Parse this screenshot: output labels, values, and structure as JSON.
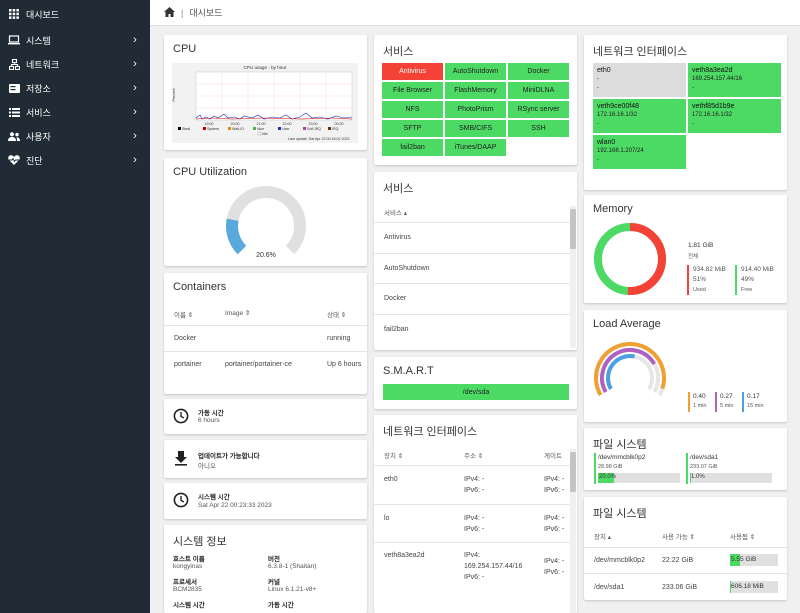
{
  "sidebar": {
    "items": [
      {
        "label": "대시보드",
        "icon": "dashboard-grid-icon"
      },
      {
        "label": "시스템",
        "icon": "laptop-icon"
      },
      {
        "label": "네트워크",
        "icon": "network-icon"
      },
      {
        "label": "저장소",
        "icon": "storage-icon"
      },
      {
        "label": "서비스",
        "icon": "list-icon"
      },
      {
        "label": "사용자",
        "icon": "users-icon"
      },
      {
        "label": "진단",
        "icon": "heart-pulse-icon"
      }
    ]
  },
  "breadcrumb": {
    "current": "대시보드"
  },
  "cpu": {
    "title": "CPU",
    "graph_title": "CPU usage - by hour",
    "y_label": "Percent",
    "x_ticks": [
      "19:00",
      "20:00",
      "21:00",
      "22:00",
      "23:00",
      "00:00"
    ],
    "legend": [
      "Steal",
      "System",
      "Wait-IO",
      "Nice",
      "User",
      "Soft-IRQ",
      "IRQ",
      "Idle"
    ],
    "updated": "Last update: Sat Apr 22 00:15:01 2023"
  },
  "cpu_util": {
    "title": "CPU Utilization",
    "value": "20.6%",
    "percent": 20.6
  },
  "containers": {
    "title": "Containers",
    "headers": [
      "이름",
      "Image",
      "상태"
    ],
    "rows": [
      [
        "Docker",
        "",
        "running"
      ],
      [
        "portainer",
        "portainer/portainer-ce",
        "Up 6 hours"
      ]
    ]
  },
  "uptime": {
    "label": "가동 시간",
    "value": "6 hours"
  },
  "updates": {
    "label": "업데이트가 가능합니다",
    "value": "아니오"
  },
  "systime": {
    "label": "시스템 시간",
    "value": "Sat Apr 22 00:23:33 2023"
  },
  "sysinfo": {
    "title": "시스템 정보",
    "fields": [
      {
        "k": "호스트 이름",
        "v": "kongyinas"
      },
      {
        "k": "버전",
        "v": "6.3.8-1 (Shaitan)"
      },
      {
        "k": "프로세서",
        "v": "BCM2835"
      },
      {
        "k": "커널",
        "v": "Linux 6.1.21-v8+"
      },
      {
        "k": "시스템 시간",
        "v": ""
      },
      {
        "k": "가동 시간",
        "v": ""
      }
    ]
  },
  "services_grid": {
    "title": "서비스",
    "tiles": [
      {
        "label": "Antivirus",
        "status": "red"
      },
      {
        "label": "AutoShutdown",
        "status": "green"
      },
      {
        "label": "Docker",
        "status": "green"
      },
      {
        "label": "File Browser",
        "status": "green"
      },
      {
        "label": "FlashMemory",
        "status": "green"
      },
      {
        "label": "MiniDLNA",
        "status": "green"
      },
      {
        "label": "NFS",
        "status": "green"
      },
      {
        "label": "PhotoPrism",
        "status": "green"
      },
      {
        "label": "RSync server",
        "status": "green"
      },
      {
        "label": "SFTP",
        "status": "green"
      },
      {
        "label": "SMB/CIFS",
        "status": "green"
      },
      {
        "label": "SSH",
        "status": "green"
      },
      {
        "label": "fail2ban",
        "status": "green"
      },
      {
        "label": "iTunes/DAAP",
        "status": "green"
      }
    ],
    "red": "#f44336",
    "green": "#4cd964"
  },
  "services_list": {
    "title": "서비스",
    "header": "서비스",
    "items": [
      "Antivirus",
      "AutoShutdown",
      "Docker",
      "fail2ban"
    ]
  },
  "smart": {
    "title": "S.M.A.R.T",
    "device": "/dev/sda"
  },
  "net_list": {
    "title": "네트워크 인터페이스",
    "headers": [
      "장치",
      "주소",
      "게이트"
    ],
    "rows": [
      {
        "dev": "eth0",
        "addr": [
          "IPv4: -",
          "IPv6: -"
        ],
        "gw": [
          "IPv4: -",
          "IPv6: -"
        ]
      },
      {
        "dev": "lo",
        "addr": [
          "IPv4: -",
          "IPv6: -"
        ],
        "gw": [
          "IPv4: -",
          "IPv6: -"
        ]
      },
      {
        "dev": "veth8a3ea2d",
        "addr": [
          "IPv4:",
          "169.254.157.44/16",
          "IPv6: -"
        ],
        "gw": [
          "IPv4: -",
          "IPv6: -"
        ]
      }
    ]
  },
  "net_grid": {
    "title": "네트워크 인터페이스",
    "tiles": [
      {
        "name": "eth0",
        "ip": "-",
        "sub": "-",
        "up": false
      },
      {
        "name": "veth8a3ea2d",
        "ip": "169.254.157.44/16",
        "sub": "-",
        "up": true
      },
      {
        "name": "veth9ce00f48",
        "ip": "172.16.16.1/32",
        "sub": "-",
        "up": true
      },
      {
        "name": "vethf85d1b9e",
        "ip": "172.16.16.1/32",
        "sub": "-",
        "up": true
      },
      {
        "name": "wlan0",
        "ip": "192.168.1.207/24",
        "sub": "-",
        "up": true
      }
    ]
  },
  "memory": {
    "title": "Memory",
    "total": "1.81 GiB",
    "total_label": "전체",
    "used": "934.82 MiB",
    "used_pct": "51%",
    "used_label": "Used",
    "free": "914.40 MiB",
    "free_pct": "49%",
    "free_label": "Free",
    "used_frac": 0.51
  },
  "load": {
    "title": "Load Average",
    "items": [
      {
        "v": "0.40",
        "l": "1 min",
        "color": "#f0a030"
      },
      {
        "v": "0.27",
        "l": "5 min",
        "color": "#b060c0"
      },
      {
        "v": "0.17",
        "l": "15 min",
        "color": "#4aa0e0"
      }
    ],
    "values": [
      0.4,
      0.27,
      0.17
    ]
  },
  "fs_tiles": {
    "title": "파일 시스템",
    "items": [
      {
        "dev": "/dev/mmcblk0p2",
        "size": "28.98 GiB",
        "pct": "20.0%",
        "frac": 0.2
      },
      {
        "dev": "/dev/sda1",
        "size": "233.07 GiB",
        "pct": "1.0%",
        "frac": 0.01
      }
    ]
  },
  "fs_table": {
    "title": "파일 시스템",
    "headers": [
      "장치",
      "사용 가능",
      "사용됨"
    ],
    "rows": [
      {
        "dev": "/dev/mmcblk0p2",
        "avail": "22.22 GiB",
        "used": "5.55 GiB",
        "frac": 0.2
      },
      {
        "dev": "/dev/sda1",
        "avail": "233.06 GiB",
        "used": "606.18 MiB",
        "frac": 0.01
      }
    ]
  }
}
